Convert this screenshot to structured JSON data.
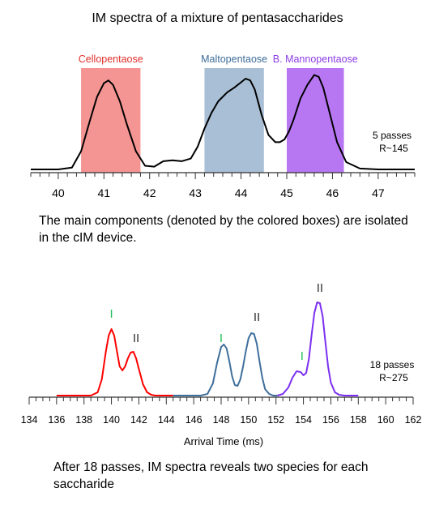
{
  "title": "IM spectra of a mixture of pentasaccharides",
  "caption1": "The main components (denoted by the colored boxes) are isolated in the cIM device.",
  "caption2": "After 18 passes, IM spectra reveals two species for each saccharide",
  "chart_data": [
    {
      "type": "line",
      "title": "IM spectra of a mixture of pentasaccharides",
      "xlabel": "",
      "ylabel": "",
      "xlim": [
        39.4,
        47.8
      ],
      "ticks": [
        "40",
        "41",
        "42",
        "43",
        "44",
        "45",
        "46",
        "47"
      ],
      "tick_values": [
        40,
        41,
        42,
        43,
        44,
        45,
        46,
        47
      ],
      "annotation": {
        "line1": "5 passes",
        "line2": "R~145"
      },
      "boxes": [
        {
          "label": "Cellopentaose",
          "x0": 40.5,
          "x1": 41.8,
          "color": "#f49593",
          "label_color": "#e0312c"
        },
        {
          "label": "Maltopentaose",
          "x0": 43.2,
          "x1": 44.5,
          "color": "#a9bfd5",
          "label_color": "#3d6c97"
        },
        {
          "label": "B. Mannopentaose",
          "x0": 45.0,
          "x1": 46.25,
          "color": "#b877f2",
          "label_color": "#8c3ce6"
        }
      ],
      "series": [
        {
          "color": "#000000",
          "x": [
            39.4,
            40.0,
            40.3,
            40.5,
            40.7,
            40.85,
            41.0,
            41.1,
            41.2,
            41.35,
            41.5,
            41.7,
            41.9,
            42.1,
            42.3,
            42.5,
            42.7,
            42.9,
            43.05,
            43.2,
            43.35,
            43.5,
            43.7,
            43.85,
            44.0,
            44.1,
            44.2,
            44.3,
            44.45,
            44.6,
            44.75,
            44.85,
            44.95,
            45.05,
            45.15,
            45.3,
            45.45,
            45.6,
            45.7,
            45.8,
            45.95,
            46.1,
            46.3,
            46.6,
            47.0,
            47.8
          ],
          "y": [
            0.0,
            0.0,
            0.02,
            0.2,
            0.55,
            0.8,
            0.95,
            0.98,
            0.93,
            0.75,
            0.5,
            0.2,
            0.04,
            0.03,
            0.09,
            0.1,
            0.09,
            0.12,
            0.25,
            0.45,
            0.62,
            0.75,
            0.85,
            0.9,
            0.96,
            1.0,
            0.98,
            0.88,
            0.6,
            0.38,
            0.3,
            0.3,
            0.33,
            0.42,
            0.55,
            0.78,
            0.93,
            1.04,
            1.02,
            0.9,
            0.6,
            0.3,
            0.08,
            0.01,
            0.0,
            0.0
          ]
        }
      ]
    },
    {
      "type": "line",
      "title": "",
      "xlabel": "Arrival Time (ms)",
      "ylabel": "",
      "xlim": [
        134,
        162
      ],
      "ticks": [
        "134",
        "136",
        "138",
        "140",
        "142",
        "144",
        "146",
        "148",
        "150",
        "152",
        "154",
        "156",
        "158",
        "160",
        "162"
      ],
      "tick_values": [
        134,
        136,
        138,
        140,
        142,
        144,
        146,
        148,
        150,
        152,
        154,
        156,
        158,
        160,
        162
      ],
      "annotation": {
        "line1": "18 passes",
        "line2": "R~275"
      },
      "species_labels": [
        {
          "text": "I",
          "x": 140.0,
          "y": 0.96,
          "color": "#21c05a"
        },
        {
          "text": "II",
          "x": 141.8,
          "y": 0.66,
          "color": "#333333"
        },
        {
          "text": "I",
          "x": 148.0,
          "y": 0.66,
          "color": "#21c05a"
        },
        {
          "text": "II",
          "x": 150.6,
          "y": 0.92,
          "color": "#333333"
        },
        {
          "text": "I",
          "x": 153.9,
          "y": 0.44,
          "color": "#21c05a"
        },
        {
          "text": "II",
          "x": 155.2,
          "y": 1.28,
          "color": "#333333"
        }
      ],
      "series": [
        {
          "name": "Cellopentaose",
          "color": "#ff0000",
          "x": [
            136.0,
            138.5,
            139.0,
            139.3,
            139.6,
            139.8,
            140.0,
            140.2,
            140.4,
            140.6,
            140.8,
            141.0,
            141.2,
            141.4,
            141.6,
            141.8,
            142.0,
            142.3,
            142.6,
            142.9,
            143.2,
            143.6,
            144.5
          ],
          "y": [
            0.0,
            0.0,
            0.04,
            0.2,
            0.55,
            0.74,
            0.82,
            0.74,
            0.55,
            0.36,
            0.31,
            0.36,
            0.46,
            0.53,
            0.54,
            0.46,
            0.33,
            0.14,
            0.04,
            0.01,
            0.0,
            0.0,
            0.0
          ]
        },
        {
          "name": "Maltopentaose",
          "color": "#3f6f9c",
          "x": [
            144.5,
            146.5,
            147.0,
            147.4,
            147.7,
            148.0,
            148.2,
            148.4,
            148.6,
            148.8,
            149.0,
            149.2,
            149.4,
            149.6,
            149.8,
            150.0,
            150.2,
            150.4,
            150.6,
            150.8,
            151.0,
            151.2,
            151.5,
            151.8,
            152.1
          ],
          "y": [
            0.0,
            0.0,
            0.02,
            0.15,
            0.4,
            0.6,
            0.63,
            0.58,
            0.42,
            0.24,
            0.13,
            0.12,
            0.2,
            0.36,
            0.55,
            0.71,
            0.77,
            0.76,
            0.64,
            0.42,
            0.22,
            0.08,
            0.02,
            0.0,
            0.0
          ]
        },
        {
          "name": "B. Mannopentaose",
          "color": "#7b2ff0",
          "x": [
            152.1,
            152.5,
            152.9,
            153.2,
            153.5,
            153.8,
            154.0,
            154.2,
            154.4,
            154.6,
            154.8,
            155.0,
            155.2,
            155.4,
            155.6,
            155.8,
            156.0,
            156.3,
            156.6,
            157.0,
            158.0
          ],
          "y": [
            0.0,
            0.02,
            0.1,
            0.22,
            0.3,
            0.29,
            0.25,
            0.28,
            0.45,
            0.75,
            1.02,
            1.15,
            1.14,
            0.98,
            0.66,
            0.36,
            0.16,
            0.04,
            0.01,
            0.0,
            0.0
          ]
        }
      ]
    }
  ]
}
